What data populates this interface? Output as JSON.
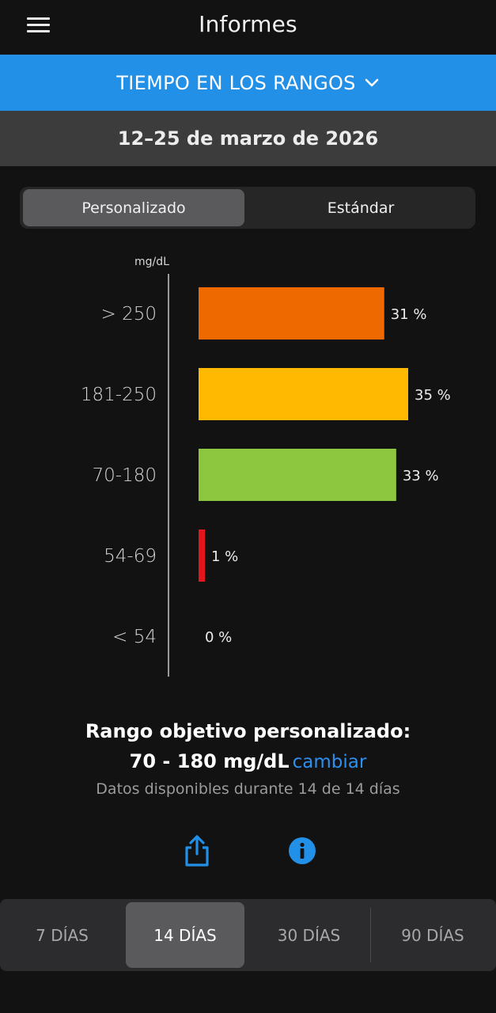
{
  "header": {
    "title": "Informes",
    "menu_icon": "hamburger-menu-icon"
  },
  "report_selector": {
    "label": "TIEMPO EN LOS RANGOS",
    "icon": "chevron-down-icon",
    "color": "#2390e8"
  },
  "date_range": "12–25 de marzo de 2026",
  "segment": {
    "options": [
      "Personalizado",
      "Estándar"
    ],
    "selected": "Personalizado"
  },
  "chart_data": {
    "type": "bar",
    "orientation": "horizontal",
    "unit_label": "mg/dL",
    "categories": [
      "> 250",
      "181-250",
      "70-180",
      "54-69",
      "< 54"
    ],
    "values": [
      31,
      35,
      33,
      1,
      0
    ],
    "value_labels": [
      "31 %",
      "35 %",
      "33 %",
      "1 %",
      "0 %"
    ],
    "colors": [
      "#ee6a00",
      "#ffb900",
      "#8dc63f",
      "#e3161c",
      "#1a1a1a"
    ],
    "xlim": [
      0,
      35
    ],
    "grid": false
  },
  "summary": {
    "title": "Rango objetivo personalizado:",
    "range": "70 - 180 mg/dL",
    "change_link": "cambiar",
    "note": "Datos disponibles durante 14 de 14 días"
  },
  "actions": {
    "share_icon": "share-icon",
    "info_icon": "info-icon",
    "accent": "#2390e8"
  },
  "periods": {
    "tabs": [
      "7 DÍAS",
      "14 DÍAS",
      "30 DÍAS",
      "90 DÍAS"
    ],
    "selected": "14 DÍAS"
  }
}
